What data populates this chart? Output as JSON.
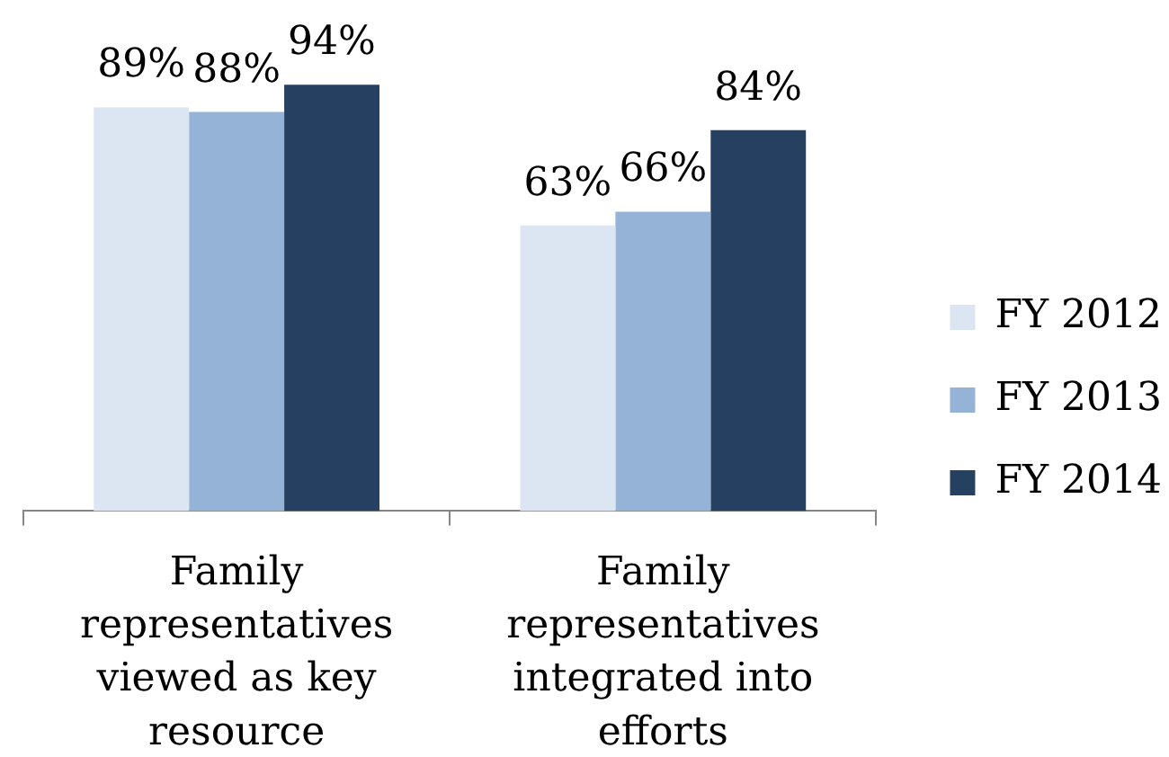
{
  "chart_data": {
    "type": "bar",
    "categories": [
      "Family representatives viewed as key resource",
      "Family representatives integrated into efforts"
    ],
    "series": [
      {
        "name": "FY 2012",
        "color": "#dce6f2",
        "values": [
          89,
          63
        ],
        "value_labels": [
          "89%",
          "63%"
        ]
      },
      {
        "name": "FY 2013",
        "color": "#95b3d7",
        "values": [
          88,
          66
        ],
        "value_labels": [
          "88%",
          "66%"
        ]
      },
      {
        "name": "FY 2014",
        "color": "#254061",
        "values": [
          94,
          84
        ],
        "value_labels": [
          "94%",
          "84%"
        ]
      }
    ],
    "legend": "right",
    "tick_labels": "x"
  }
}
